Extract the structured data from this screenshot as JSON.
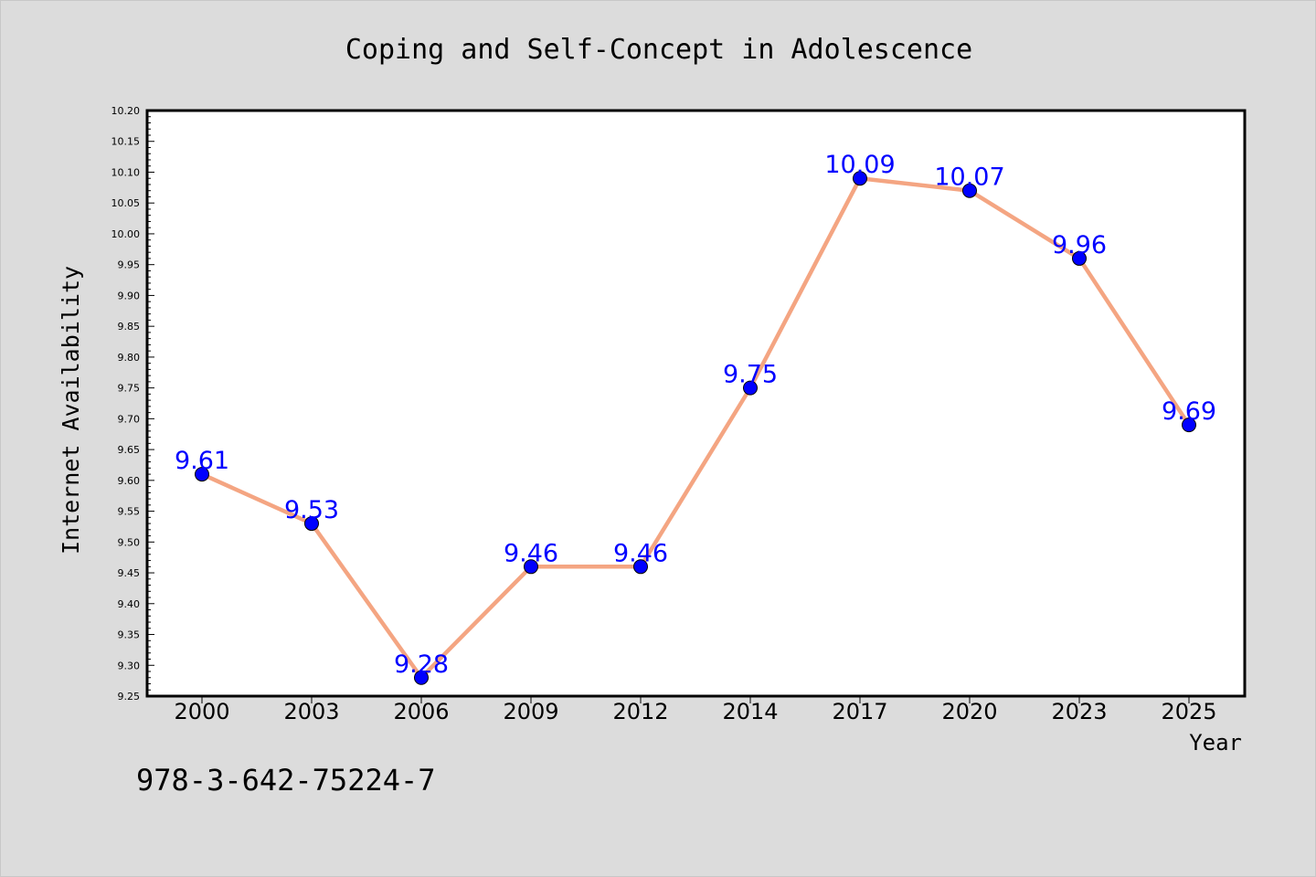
{
  "chart_data": {
    "type": "line",
    "title": "Coping and Self-Concept in Adolescence",
    "xlabel": "Year",
    "ylabel": "Internet Availability",
    "categories": [
      "2000",
      "2003",
      "2006",
      "2009",
      "2012",
      "2014",
      "2017",
      "2020",
      "2023",
      "2025"
    ],
    "series": [
      {
        "values": [
          9.61,
          9.53,
          9.28,
          9.46,
          9.46,
          9.75,
          10.09,
          10.07,
          9.96,
          9.69
        ],
        "data_labels": [
          "9.61",
          "9.53",
          "9.28",
          "9.46",
          "9.46",
          "9.75",
          "10.09",
          "10.07",
          "9.96",
          "9.69"
        ]
      }
    ],
    "ylim": [
      9.25,
      10.2
    ],
    "y_ticks": [
      "9.25",
      "9.30",
      "9.35",
      "9.40",
      "9.45",
      "9.50",
      "9.55",
      "9.60",
      "9.65",
      "9.70",
      "9.75",
      "9.80",
      "9.85",
      "9.90",
      "9.95",
      "10.00",
      "10.05",
      "10.10",
      "10.15",
      "10.20"
    ],
    "grid": false,
    "legend": "none",
    "colors": {
      "line": "#f4a582",
      "marker": "#0000ff",
      "label": "#0000ff",
      "background": "#dcdcdc",
      "plot_background": "#ffffff",
      "axis": "#000000"
    }
  },
  "footer": {
    "isbn": "978-3-642-75224-7"
  }
}
